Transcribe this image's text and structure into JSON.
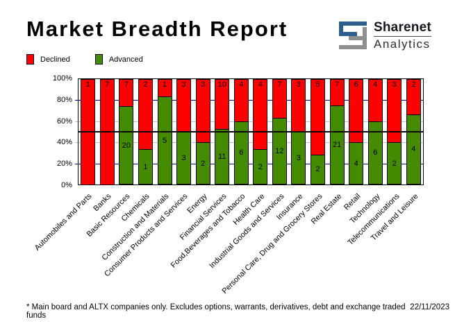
{
  "header": {
    "title": "Market Breadth Report",
    "logo": {
      "name": "Sharenet",
      "sub": "Analytics",
      "icon": "sharenet-s-icon",
      "icon_blue": "#2e5e8c",
      "icon_gray": "#8f8f8f"
    }
  },
  "chart_data": {
    "type": "bar",
    "stacked": true,
    "stack_mode": "percent",
    "title": "Market Breadth Report",
    "categories": [
      "Automobiles and Parts",
      "Banks",
      "Basic Resources",
      "Chemicals",
      "Construction and Materials",
      "Consumer Products and Services",
      "Energy",
      "Financial Services",
      "Food,Beverages and Tobacco",
      "Health Care",
      "Industrial Goods and Services",
      "Insurance",
      "Personal Care, Drug and Grocery Stores",
      "Real Estate",
      "Retail",
      "Technology",
      "Telecommunications",
      "Travel and Leisure"
    ],
    "series": [
      {
        "name": "Declined",
        "color": "#ff0000",
        "values": [
          1,
          7,
          7,
          2,
          1,
          3,
          3,
          10,
          4,
          4,
          7,
          3,
          5,
          7,
          6,
          4,
          3,
          2
        ]
      },
      {
        "name": "Advanced",
        "color": "#458b00",
        "values": [
          0,
          0,
          20,
          1,
          5,
          3,
          2,
          11,
          6,
          2,
          12,
          3,
          2,
          21,
          4,
          6,
          2,
          4
        ]
      }
    ],
    "ylabel": "",
    "xlabel": "",
    "ylim": [
      0,
      100
    ],
    "y_ticks": [
      "0%",
      "20%",
      "40%",
      "60%",
      "80%",
      "100%"
    ],
    "gridlines": [
      {
        "percent": 20,
        "color": "#000080"
      },
      {
        "percent": 40,
        "color": "#c0c0c0"
      },
      {
        "percent": 60,
        "color": "#c0c0c0"
      },
      {
        "percent": 80,
        "color": "#000080"
      }
    ],
    "half_line": {
      "percent": 50,
      "color": "#000000"
    },
    "legend_position": "top-left",
    "bar_labels": "counts shown inside segments"
  },
  "footer": {
    "note": "* Main board and ALTX companies only. Excludes options, warrants, derivatives, debt and exchange traded funds",
    "date": "22/11/2023"
  }
}
